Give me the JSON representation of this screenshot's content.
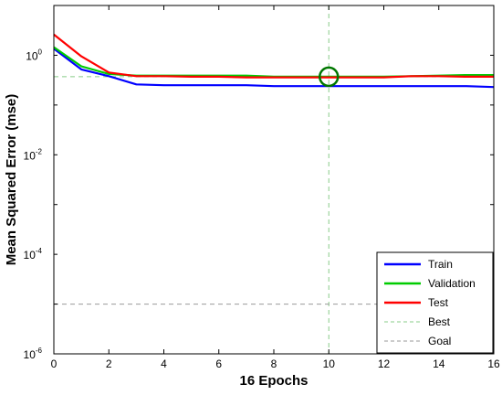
{
  "chart_data": {
    "type": "line",
    "xlabel": "16 Epochs",
    "ylabel": "Mean Squared Error  (mse)",
    "xlim": [
      0,
      16
    ],
    "ylim": [
      1e-06,
      10
    ],
    "yscale": "log",
    "x_ticks": [
      "0",
      "2",
      "4",
      "6",
      "8",
      "10",
      "12",
      "14",
      "16"
    ],
    "y_ticks": [
      {
        "base": "10",
        "exp": "0",
        "value": 1
      },
      {
        "base": "10",
        "exp": "-2",
        "value": 0.01
      },
      {
        "base": "10",
        "exp": "-4",
        "value": 0.0001
      },
      {
        "base": "10",
        "exp": "-6",
        "value": 1e-06
      }
    ],
    "grid": false,
    "legend_position": "bottom-right",
    "x": [
      0,
      1,
      2,
      3,
      4,
      5,
      6,
      7,
      8,
      9,
      10,
      11,
      12,
      13,
      14,
      15,
      16
    ],
    "series": [
      {
        "name": "Train",
        "color": "#0000ff",
        "values": [
          1.35,
          0.52,
          0.38,
          0.26,
          0.25,
          0.25,
          0.25,
          0.25,
          0.24,
          0.24,
          0.24,
          0.24,
          0.24,
          0.24,
          0.24,
          0.24,
          0.23
        ]
      },
      {
        "name": "Validation",
        "color": "#00cc00",
        "values": [
          1.45,
          0.6,
          0.42,
          0.39,
          0.39,
          0.39,
          0.39,
          0.39,
          0.37,
          0.37,
          0.37,
          0.37,
          0.37,
          0.38,
          0.39,
          0.4,
          0.4
        ]
      },
      {
        "name": "Test",
        "color": "#ff0000",
        "values": [
          2.6,
          0.95,
          0.45,
          0.38,
          0.38,
          0.37,
          0.37,
          0.36,
          0.36,
          0.36,
          0.36,
          0.36,
          0.36,
          0.38,
          0.38,
          0.37,
          0.37
        ]
      }
    ],
    "best": {
      "name": "Best",
      "epoch": 10,
      "value": 0.37,
      "line_color": "#88cc88",
      "marker_color": "#007700"
    },
    "goal": {
      "name": "Goal",
      "value": 1e-05,
      "line_color": "#999999"
    }
  }
}
